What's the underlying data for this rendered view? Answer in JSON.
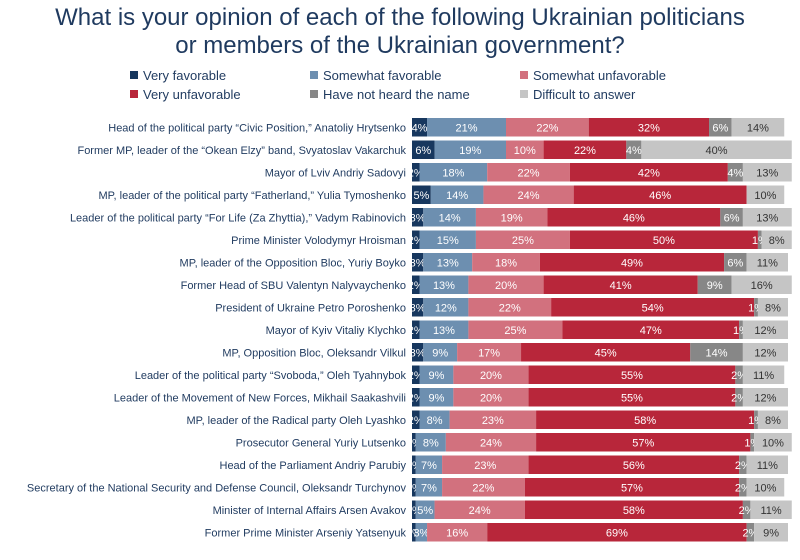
{
  "title": {
    "line1": "What is your opinion of each of the following Ukrainian politicians",
    "line2": "or members of the Ukrainian government?"
  },
  "colors": {
    "very_favorable": "#17375e",
    "somewhat_favorable": "#6d8fb0",
    "somewhat_unfavorable": "#d2717e",
    "very_unfavorable": "#b8263a",
    "not_heard": "#878787",
    "difficult": "#c5c5c5",
    "title": "#1f3a5f"
  },
  "chart_data": {
    "type": "bar",
    "stacked": true,
    "orientation": "horizontal",
    "legend_position": "top",
    "categories": [
      "Head of the political party “Civic Position,” Anatoliy Hrytsenko",
      "Former MP, leader of the “Okean Elzy” band, Svyatoslav Vakarchuk",
      "Mayor of Lviv Andriy Sadovyi",
      "MP, leader of the political party “Fatherland,” Yulia Tymoshenko",
      "Leader of the political party “For Life (Za Zhyttia),” Vadym Rabinovich",
      "Prime Minister Volodymyr Hroisman",
      "MP, leader of the Opposition Bloc, Yuriy Boyko",
      "Former Head of SBU Valentyn Nalyvaychenko",
      "President of Ukraine Petro Poroshenko",
      "Mayor of Kyiv Vitaliy Klychko",
      "MP, Opposition Bloc, Oleksandr Vilkul",
      "Leader of the political party “Svoboda,” Oleh Tyahnybok",
      "Leader of the Movement of New Forces, Mikhail Saakashvili",
      "MP, leader of the Radical party Oleh Lyashko",
      "Prosecutor General Yuriy Lutsenko",
      "Head of the Parliament Andriy Parubiy",
      "Secretary of the National Security and Defense Council, Oleksandr Turchynov",
      "Minister of Internal Affairs Arsen Avakov",
      "Former Prime Minister Arseniy Yatsenyuk"
    ],
    "series": [
      {
        "name": "Very favorable",
        "key": "very_favorable",
        "values": [
          4,
          6,
          2,
          5,
          3,
          2,
          3,
          2,
          3,
          2,
          3,
          2,
          2,
          2,
          1,
          1,
          1,
          1,
          1
        ]
      },
      {
        "name": "Somewhat favorable",
        "key": "somewhat_favorable",
        "values": [
          21,
          19,
          18,
          14,
          14,
          15,
          13,
          13,
          12,
          13,
          9,
          9,
          9,
          8,
          8,
          7,
          7,
          5,
          3
        ]
      },
      {
        "name": "Somewhat unfavorable",
        "key": "somewhat_unfavorable",
        "values": [
          22,
          10,
          22,
          24,
          19,
          25,
          18,
          20,
          22,
          25,
          17,
          20,
          20,
          23,
          24,
          23,
          22,
          24,
          16
        ]
      },
      {
        "name": "Very unfavorable",
        "key": "very_unfavorable",
        "values": [
          32,
          22,
          42,
          46,
          46,
          50,
          49,
          41,
          54,
          47,
          45,
          55,
          55,
          58,
          57,
          56,
          57,
          58,
          69
        ]
      },
      {
        "name": "Have not heard the name",
        "key": "not_heard",
        "values": [
          6,
          4,
          4,
          0,
          6,
          1,
          6,
          9,
          1,
          1,
          14,
          2,
          2,
          1,
          1,
          2,
          2,
          2,
          2
        ]
      },
      {
        "name": "Difficult to answer",
        "key": "difficult",
        "values": [
          14,
          40,
          13,
          10,
          13,
          8,
          11,
          16,
          8,
          12,
          12,
          11,
          12,
          8,
          10,
          11,
          10,
          11,
          9
        ]
      }
    ],
    "xlim": [
      0,
      100
    ],
    "value_suffix": "%"
  }
}
